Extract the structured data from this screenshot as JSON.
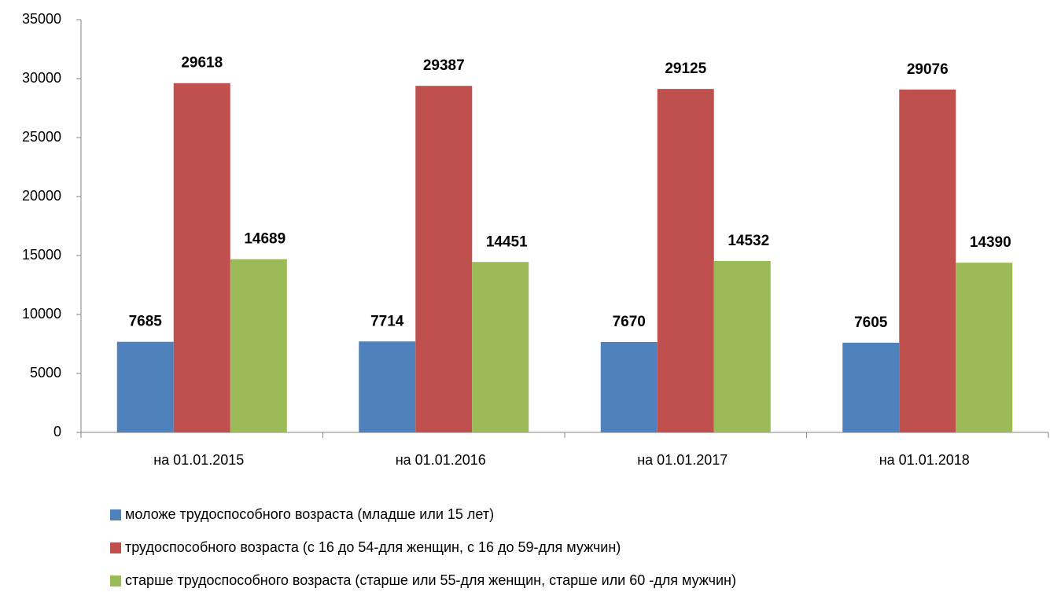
{
  "chart_data": {
    "type": "bar",
    "categories": [
      "на 01.01.2015",
      "на 01.01.2016",
      "на 01.01.2017",
      "на 01.01.2018"
    ],
    "series": [
      {
        "name": "моложе трудоспособного возраста (младше или 15 лет)",
        "color": "#4f81bd",
        "values": [
          7685,
          7714,
          7670,
          7605
        ]
      },
      {
        "name": "трудоспособного возраста (с 16 до 54-для женщин, с 16 до 59-для мужчин)",
        "color": "#c0504d",
        "values": [
          29618,
          29387,
          29125,
          29076
        ]
      },
      {
        "name": "старше трудоспособного возраста (старше или 55-для женщин, старше или 60 -для мужчин)",
        "color": "#9bbb59",
        "values": [
          14689,
          14451,
          14532,
          14390
        ]
      }
    ],
    "ylim": [
      0,
      35000
    ],
    "yticks": [
      0,
      5000,
      10000,
      15000,
      20000,
      25000,
      30000,
      35000
    ],
    "grid": false,
    "legend": "bottom"
  }
}
